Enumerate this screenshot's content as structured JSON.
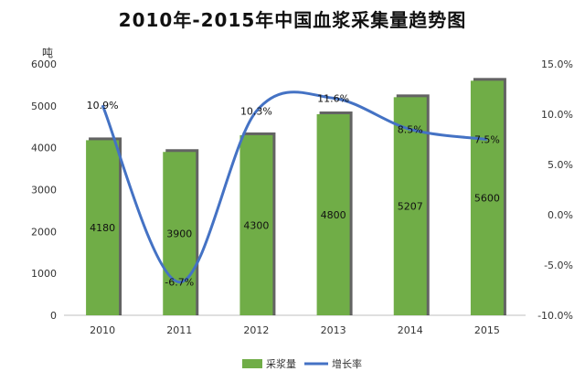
{
  "chart_data": {
    "type": "bar",
    "title": "2010年-2015年中国血浆采集量趋势图",
    "ylabel": "吨",
    "categories": [
      "2010",
      "2011",
      "2012",
      "2013",
      "2014",
      "2015"
    ],
    "ylim": [
      0,
      6000
    ],
    "y_ticks": [
      "0",
      "1000",
      "2000",
      "3000",
      "4000",
      "5000",
      "6000"
    ],
    "y2lim": [
      -10,
      15
    ],
    "y2_ticks": [
      "-10.0%",
      "-5.0%",
      "0.0%",
      "5.0%",
      "10.0%",
      "15.0%"
    ],
    "grid": false,
    "legend_position": "bottom",
    "series": [
      {
        "name": "采浆量",
        "type": "bar",
        "axis": "left",
        "color": "#70ad47",
        "values": [
          4180,
          3900,
          4300,
          4800,
          5207,
          5600
        ],
        "labels": [
          "4180",
          "3900",
          "4300",
          "4800",
          "5207",
          "5600"
        ]
      },
      {
        "name": "增长率",
        "type": "line",
        "axis": "right",
        "color": "#4472c4",
        "values": [
          10.9,
          -6.7,
          10.3,
          11.6,
          8.5,
          7.5
        ],
        "labels": [
          "10.9%",
          "-6.7%",
          "10.3%",
          "11.6%",
          "8.5%",
          "7.5%"
        ]
      }
    ]
  }
}
